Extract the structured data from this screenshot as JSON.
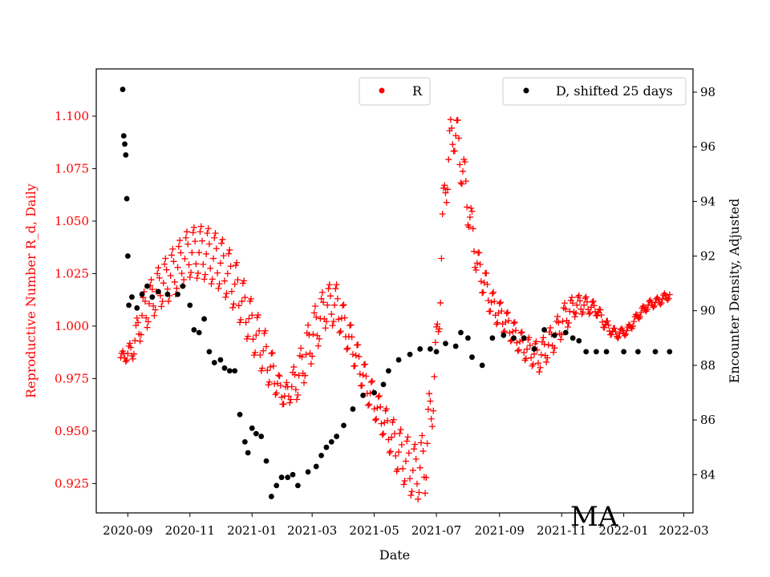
{
  "chart_data": {
    "type": "scatter",
    "xlabel": "Date",
    "xlim": [
      "2020-08-01",
      "2022-03-10"
    ],
    "xticks": [
      "2020-09",
      "2020-11",
      "2021-01",
      "2021-03",
      "2021-05",
      "2021-07",
      "2021-09",
      "2021-11",
      "2022-01",
      "2022-03"
    ],
    "left_axis": {
      "label": "Reproductive Number R_d, Daily",
      "color": "#ff0000",
      "ylim": [
        0.911,
        1.1225
      ],
      "ticks": [
        "0.925",
        "0.950",
        "0.975",
        "1.000",
        "1.025",
        "1.050",
        "1.075",
        "1.100"
      ]
    },
    "right_axis": {
      "label": "Encounter Density, Adjusted",
      "color": "#000000",
      "ylim": [
        82.6,
        98.85
      ],
      "ticks": [
        "84",
        "86",
        "88",
        "90",
        "92",
        "94",
        "96",
        "98"
      ]
    },
    "series": [
      {
        "name": "R",
        "axis": "left",
        "color": "#ff0000",
        "marker": "+",
        "oscillation_note_values": "daily values oscillate weekly around the trend",
        "x": [
          "2020-08-25",
          "2020-09-05",
          "2020-09-15",
          "2020-10-01",
          "2020-10-15",
          "2020-11-01",
          "2020-11-15",
          "2020-12-01",
          "2020-12-15",
          "2021-01-01",
          "2021-01-15",
          "2021-02-01",
          "2021-02-15",
          "2021-03-01",
          "2021-03-15",
          "2021-03-25",
          "2021-04-10",
          "2021-04-25",
          "2021-05-10",
          "2021-05-25",
          "2021-06-10",
          "2021-06-20",
          "2021-07-01",
          "2021-07-10",
          "2021-07-18",
          "2021-07-25",
          "2021-08-10",
          "2021-08-25",
          "2021-09-10",
          "2021-09-25",
          "2021-10-10",
          "2021-10-25",
          "2021-11-05",
          "2021-11-15",
          "2021-11-25",
          "2021-12-05",
          "2021-12-15",
          "2021-12-25",
          "2022-01-05",
          "2022-01-15",
          "2022-01-25",
          "2022-02-05",
          "2022-02-15"
        ],
        "trend": [
          0.985,
          0.988,
          1.005,
          1.018,
          1.025,
          1.035,
          1.035,
          1.03,
          1.02,
          1.0,
          0.985,
          0.966,
          0.975,
          0.995,
          1.01,
          1.01,
          0.99,
          0.97,
          0.955,
          0.94,
          0.93,
          0.935,
          0.985,
          1.07,
          1.095,
          1.08,
          1.03,
          1.01,
          1.0,
          0.99,
          0.985,
          0.995,
          1.005,
          1.01,
          1.01,
          1.008,
          1.0,
          0.996,
          0.998,
          1.005,
          1.01,
          1.012,
          1.015
        ],
        "amplitude": [
          0.002,
          0.005,
          0.01,
          0.01,
          0.012,
          0.012,
          0.013,
          0.013,
          0.013,
          0.012,
          0.012,
          0.004,
          0.01,
          0.012,
          0.01,
          0.01,
          0.008,
          0.008,
          0.008,
          0.012,
          0.014,
          0.015,
          0.015,
          0.015,
          0.012,
          0.012,
          0.008,
          0.007,
          0.006,
          0.006,
          0.007,
          0.007,
          0.007,
          0.005,
          0.004,
          0.003,
          0.003,
          0.002,
          0.002,
          0.002,
          0.002,
          0.002,
          0.002
        ]
      },
      {
        "name": "D, shifted 25 days",
        "axis": "right",
        "color": "#000000",
        "marker": "o",
        "x": [
          "2020-08-27",
          "2020-08-28",
          "2020-08-29",
          "2020-08-30",
          "2020-08-31",
          "2020-09-01",
          "2020-09-02",
          "2020-09-05",
          "2020-09-10",
          "2020-09-15",
          "2020-09-20",
          "2020-09-25",
          "2020-10-01",
          "2020-10-10",
          "2020-10-20",
          "2020-10-25",
          "2020-11-01",
          "2020-11-05",
          "2020-11-10",
          "2020-11-15",
          "2020-11-20",
          "2020-11-25",
          "2020-12-01",
          "2020-12-05",
          "2020-12-10",
          "2020-12-15",
          "2020-12-20",
          "2020-12-25",
          "2020-12-28",
          "2021-01-01",
          "2021-01-05",
          "2021-01-10",
          "2021-01-15",
          "2021-01-20",
          "2021-01-25",
          "2021-01-30",
          "2021-02-05",
          "2021-02-10",
          "2021-02-15",
          "2021-02-25",
          "2021-03-05",
          "2021-03-10",
          "2021-03-15",
          "2021-03-20",
          "2021-03-25",
          "2021-04-01",
          "2021-04-10",
          "2021-04-20",
          "2021-05-01",
          "2021-05-10",
          "2021-05-15",
          "2021-05-25",
          "2021-06-05",
          "2021-06-15",
          "2021-06-25",
          "2021-07-01",
          "2021-07-10",
          "2021-07-20",
          "2021-07-25",
          "2021-08-01",
          "2021-08-05",
          "2021-08-15",
          "2021-08-25",
          "2021-09-05",
          "2021-09-15",
          "2021-09-25",
          "2021-10-05",
          "2021-10-15",
          "2021-10-25",
          "2021-11-05",
          "2021-11-12",
          "2021-11-18",
          "2021-11-25",
          "2021-12-05",
          "2021-12-15",
          "2022-01-01",
          "2022-01-15",
          "2022-02-01",
          "2022-02-15"
        ],
        "y": [
          98.1,
          96.4,
          96.1,
          95.7,
          94.1,
          92.0,
          90.2,
          90.5,
          90.1,
          90.6,
          90.9,
          90.5,
          90.7,
          90.6,
          90.6,
          90.9,
          90.2,
          89.3,
          89.2,
          89.7,
          88.5,
          88.1,
          88.2,
          87.9,
          87.8,
          87.8,
          86.2,
          85.2,
          84.8,
          85.7,
          85.5,
          85.4,
          84.5,
          83.2,
          83.6,
          83.9,
          83.9,
          84.0,
          83.6,
          84.1,
          84.3,
          84.7,
          85.0,
          85.2,
          85.4,
          85.8,
          86.4,
          86.9,
          87.0,
          87.3,
          87.8,
          88.2,
          88.4,
          88.6,
          88.6,
          88.5,
          88.8,
          88.7,
          89.2,
          89.0,
          88.3,
          88.0,
          89.0,
          89.1,
          89.0,
          89.0,
          88.6,
          89.3,
          89.1,
          89.2,
          89.0,
          88.9,
          88.5,
          88.5,
          88.5,
          88.5,
          88.5,
          88.5,
          88.5
        ]
      }
    ]
  },
  "legend": {
    "r_label": "R",
    "d_label": "D, shifted 25 days"
  },
  "annotation": "MA"
}
